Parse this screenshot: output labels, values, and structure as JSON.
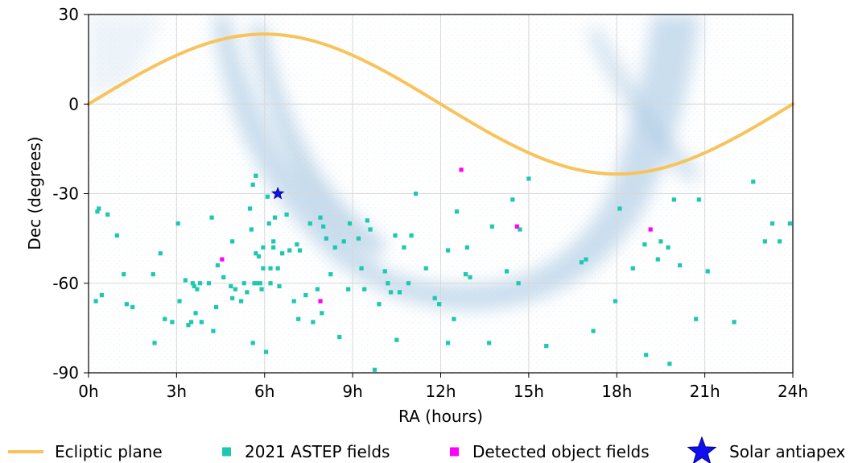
{
  "chart_data": {
    "type": "scatter",
    "title": "",
    "xlabel": "RA (hours)",
    "ylabel": "Dec (degrees)",
    "xlim": [
      0,
      24
    ],
    "ylim": [
      -90,
      30
    ],
    "xticks": [
      0,
      3,
      6,
      9,
      12,
      15,
      18,
      21,
      24
    ],
    "xtick_labels": [
      "0h",
      "3h",
      "6h",
      "9h",
      "12h",
      "15h",
      "18h",
      "21h",
      "24h"
    ],
    "yticks": [
      30,
      0,
      -30,
      -60,
      -90
    ],
    "ytick_labels": [
      "30",
      "0",
      "-30",
      "-60",
      "-90"
    ],
    "grid": true,
    "legend_position": "bottom",
    "background": "Milky Way star density map (light blue)",
    "series": [
      {
        "name": "Ecliptic plane",
        "kind": "line",
        "color": "#f7c35a",
        "obliquity_deg": 23.44
      },
      {
        "name": "2021 ASTEP fields",
        "kind": "points",
        "marker": "square",
        "color": "#1ec8b0",
        "points": [
          [
            0.25,
            -66
          ],
          [
            0.3,
            -36
          ],
          [
            0.35,
            -35
          ],
          [
            0.45,
            -64
          ],
          [
            0.65,
            -37
          ],
          [
            0.97,
            -44
          ],
          [
            1.2,
            -57
          ],
          [
            1.3,
            -67
          ],
          [
            1.5,
            -68
          ],
          [
            2.2,
            -57
          ],
          [
            2.25,
            -80
          ],
          [
            2.45,
            -50
          ],
          [
            2.6,
            -72
          ],
          [
            2.85,
            -73
          ],
          [
            3.05,
            -40
          ],
          [
            3.1,
            -66
          ],
          [
            3.3,
            -59
          ],
          [
            3.4,
            -74
          ],
          [
            3.5,
            -73
          ],
          [
            3.55,
            -60
          ],
          [
            3.6,
            -61
          ],
          [
            3.65,
            -70
          ],
          [
            3.7,
            -62
          ],
          [
            3.8,
            -60
          ],
          [
            3.85,
            -73
          ],
          [
            4.1,
            -60
          ],
          [
            4.2,
            -38
          ],
          [
            4.25,
            -76
          ],
          [
            4.35,
            -68
          ],
          [
            4.4,
            -54
          ],
          [
            4.6,
            -58
          ],
          [
            4.85,
            -61
          ],
          [
            4.9,
            -65
          ],
          [
            4.9,
            -46
          ],
          [
            5.0,
            -62
          ],
          [
            5.2,
            -66
          ],
          [
            5.3,
            -60
          ],
          [
            5.4,
            -63
          ],
          [
            5.5,
            -35
          ],
          [
            5.55,
            -42
          ],
          [
            5.6,
            -80
          ],
          [
            5.6,
            -27
          ],
          [
            5.65,
            -60
          ],
          [
            5.7,
            -50
          ],
          [
            5.7,
            -24
          ],
          [
            5.75,
            -60
          ],
          [
            5.8,
            -51
          ],
          [
            5.85,
            -60
          ],
          [
            5.9,
            -62
          ],
          [
            5.95,
            -48
          ],
          [
            5.95,
            -55
          ],
          [
            6.05,
            -83
          ],
          [
            6.1,
            -31
          ],
          [
            6.15,
            -40
          ],
          [
            6.2,
            -60
          ],
          [
            6.2,
            -55
          ],
          [
            6.3,
            -46
          ],
          [
            6.3,
            -48
          ],
          [
            6.35,
            -38
          ],
          [
            6.45,
            -55
          ],
          [
            6.5,
            -61
          ],
          [
            6.6,
            -50
          ],
          [
            6.75,
            -37
          ],
          [
            6.85,
            -49
          ],
          [
            7.0,
            -66
          ],
          [
            7.1,
            -47
          ],
          [
            7.15,
            -72
          ],
          [
            7.2,
            -49
          ],
          [
            7.4,
            -64
          ],
          [
            7.55,
            -40
          ],
          [
            7.65,
            -73
          ],
          [
            7.8,
            -62
          ],
          [
            7.9,
            -38
          ],
          [
            7.95,
            -70
          ],
          [
            8.0,
            -41
          ],
          [
            8.1,
            -45
          ],
          [
            8.25,
            -57
          ],
          [
            8.4,
            -48
          ],
          [
            8.55,
            -78
          ],
          [
            8.7,
            -46
          ],
          [
            8.85,
            -62
          ],
          [
            8.9,
            -40
          ],
          [
            9.2,
            -45
          ],
          [
            9.3,
            -55
          ],
          [
            9.4,
            -62
          ],
          [
            9.5,
            -39
          ],
          [
            9.6,
            -42
          ],
          [
            9.75,
            -89
          ],
          [
            9.9,
            -67
          ],
          [
            10.1,
            -56
          ],
          [
            10.2,
            -60
          ],
          [
            10.3,
            -63
          ],
          [
            10.45,
            -44
          ],
          [
            10.5,
            -79
          ],
          [
            10.6,
            -63
          ],
          [
            10.75,
            -48
          ],
          [
            10.9,
            -60
          ],
          [
            11.0,
            -44
          ],
          [
            11.15,
            -30
          ],
          [
            11.5,
            -55
          ],
          [
            11.8,
            -65
          ],
          [
            11.95,
            -67
          ],
          [
            12.25,
            -49
          ],
          [
            12.25,
            -80
          ],
          [
            12.45,
            -72
          ],
          [
            12.55,
            -36
          ],
          [
            12.85,
            -57
          ],
          [
            12.9,
            -48
          ],
          [
            13.0,
            -58
          ],
          [
            13.65,
            -80
          ],
          [
            13.75,
            -41
          ],
          [
            14.25,
            -56
          ],
          [
            14.45,
            -32
          ],
          [
            14.65,
            -60
          ],
          [
            14.7,
            -42
          ],
          [
            15.0,
            -25
          ],
          [
            15.6,
            -81
          ],
          [
            16.8,
            -53
          ],
          [
            16.95,
            -52
          ],
          [
            17.2,
            -76
          ],
          [
            17.95,
            -66
          ],
          [
            18.1,
            -35
          ],
          [
            18.55,
            -55
          ],
          [
            18.95,
            -47
          ],
          [
            19.0,
            -84
          ],
          [
            19.4,
            -52
          ],
          [
            19.5,
            -46
          ],
          [
            19.75,
            -48
          ],
          [
            19.8,
            -87
          ],
          [
            19.95,
            -32
          ],
          [
            20.15,
            -54
          ],
          [
            20.7,
            -72
          ],
          [
            20.8,
            -32
          ],
          [
            21.1,
            -56
          ],
          [
            22.0,
            -73
          ],
          [
            22.65,
            -26
          ],
          [
            23.05,
            -46
          ],
          [
            23.3,
            -40
          ],
          [
            23.55,
            -46
          ],
          [
            23.9,
            -40
          ]
        ]
      },
      {
        "name": "Detected object fields",
        "kind": "points",
        "marker": "square",
        "color": "#ff00ff",
        "points": [
          [
            4.55,
            -52
          ],
          [
            7.9,
            -66
          ],
          [
            12.7,
            -22
          ],
          [
            14.6,
            -41
          ],
          [
            19.15,
            -42
          ]
        ]
      },
      {
        "name": "Solar antiapex",
        "kind": "points",
        "marker": "star",
        "color": "#1010ee",
        "points": [
          [
            6.45,
            -30
          ]
        ]
      }
    ]
  }
}
